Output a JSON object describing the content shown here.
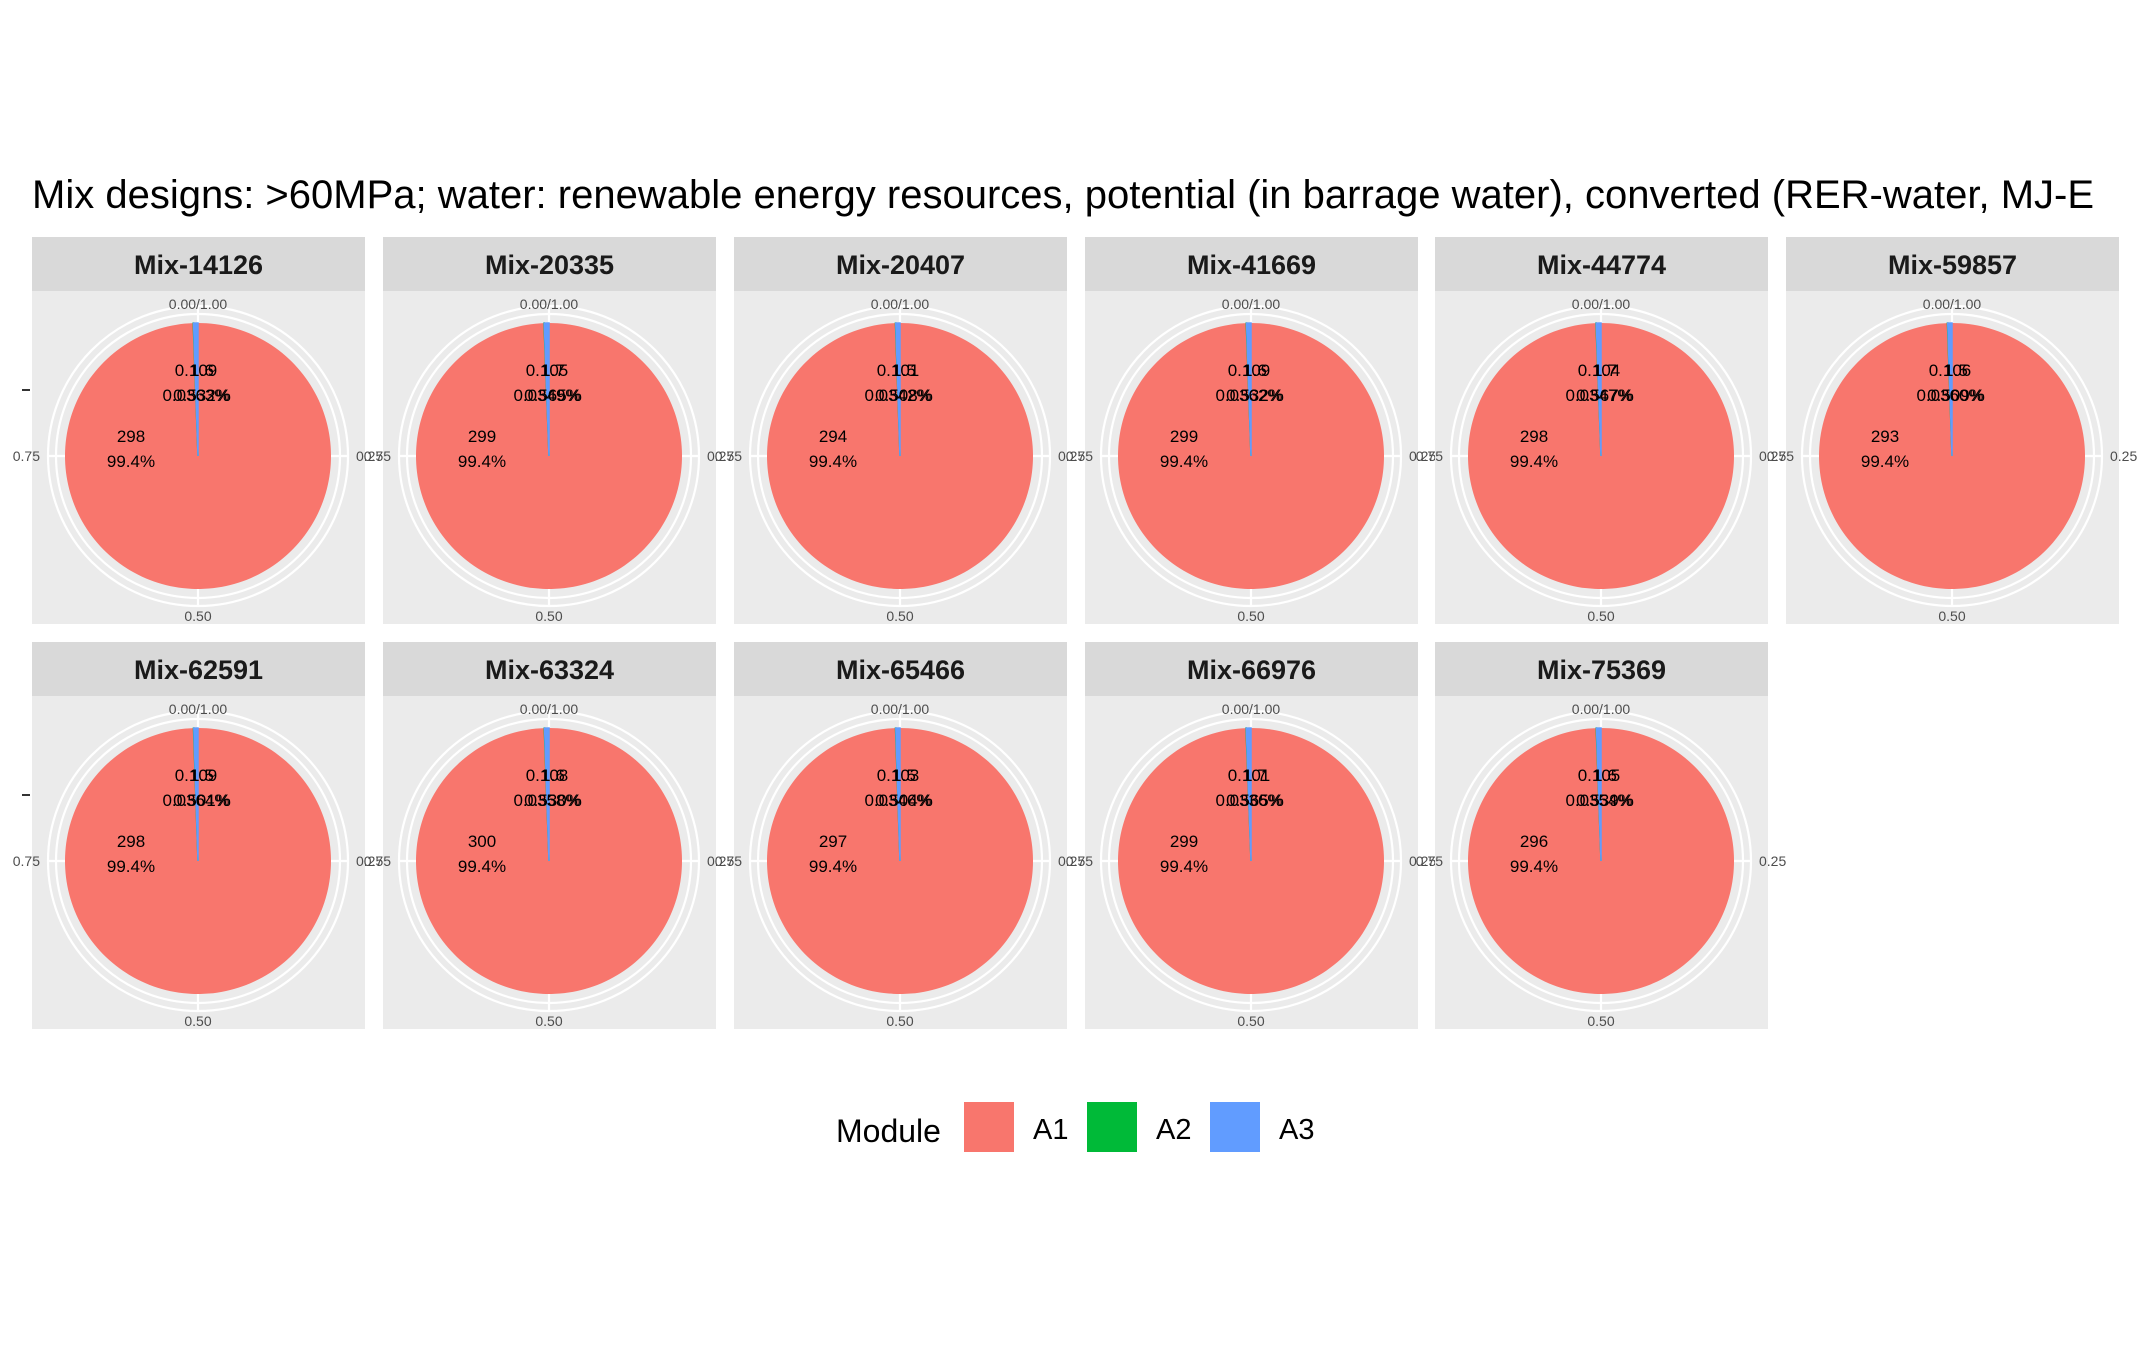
{
  "chart_data": {
    "type": "pie",
    "title": "Mix designs: >60MPa; water: renewable energy resources, potential (in barrage water), converted (RER-water, MJ-E",
    "angle_ticks": [
      "0.00/1.00",
      "0.25",
      "0.50",
      "0.75"
    ],
    "legend": {
      "title": "Module",
      "position": "bottom",
      "entries": [
        "A1",
        "A2",
        "A3"
      ]
    },
    "colors": {
      "A1": "#F8766D",
      "A2": "#00BA38",
      "A3": "#619CFF"
    },
    "facets": [
      {
        "name": "Mix-14126",
        "values": [
          298,
          0.109,
          1.6
        ],
        "labels": {
          "A1": [
            "298",
            "99.4%"
          ],
          "A2": [
            "0.109",
            "0.0363%"
          ],
          "A3": [
            "1.6",
            "0.532%"
          ]
        }
      },
      {
        "name": "Mix-20335",
        "values": [
          299,
          0.105,
          1.7
        ],
        "labels": {
          "A1": [
            "299",
            "99.4%"
          ],
          "A2": [
            "0.105",
            "0.0349%"
          ],
          "A3": [
            "1.7",
            "0.565%"
          ]
        }
      },
      {
        "name": "Mix-20407",
        "values": [
          294,
          0.101,
          1.5
        ],
        "labels": {
          "A1": [
            "294",
            "99.4%"
          ],
          "A2": [
            "0.101",
            "0.0342%"
          ],
          "A3": [
            "1.5",
            "0.508%"
          ]
        }
      },
      {
        "name": "Mix-41669",
        "values": [
          299,
          0.109,
          1.6
        ],
        "labels": {
          "A1": [
            "299",
            "99.4%"
          ],
          "A2": [
            "0.109",
            "0.0362%"
          ],
          "A3": [
            "1.6",
            "0.532%"
          ]
        }
      },
      {
        "name": "Mix-44774",
        "values": [
          298,
          0.104,
          1.7
        ],
        "labels": {
          "A1": [
            "298",
            "99.4%"
          ],
          "A2": [
            "0.104",
            "0.0347%"
          ],
          "A3": [
            "1.7",
            "0.567%"
          ]
        }
      },
      {
        "name": "Mix-59857",
        "values": [
          293,
          0.106,
          1.5
        ],
        "labels": {
          "A1": [
            "293",
            "99.4%"
          ],
          "A2": [
            "0.106",
            "0.0360%"
          ],
          "A3": [
            "1.5",
            "0.509%"
          ]
        }
      },
      {
        "name": "Mix-62591",
        "values": [
          298,
          0.109,
          1.5
        ],
        "labels": {
          "A1": [
            "298",
            "99.4%"
          ],
          "A2": [
            "0.109",
            "0.0364%"
          ],
          "A3": [
            "1.5",
            "0.501%"
          ]
        }
      },
      {
        "name": "Mix-63324",
        "values": [
          300,
          0.108,
          1.6
        ],
        "labels": {
          "A1": [
            "300",
            "99.4%"
          ],
          "A2": [
            "0.108",
            "0.0358%"
          ],
          "A3": [
            "1.6",
            "0.530%"
          ]
        }
      },
      {
        "name": "Mix-65466",
        "values": [
          297,
          0.103,
          1.5
        ],
        "labels": {
          "A1": [
            "297",
            "99.4%"
          ],
          "A2": [
            "0.103",
            "0.0346%"
          ],
          "A3": [
            "1.5",
            "0.504%"
          ]
        }
      },
      {
        "name": "Mix-66976",
        "values": [
          299,
          0.101,
          1.7
        ],
        "labels": {
          "A1": [
            "299",
            "99.4%"
          ],
          "A2": [
            "0.101",
            "0.0336%"
          ],
          "A3": [
            "1.7",
            "0.565%"
          ]
        }
      },
      {
        "name": "Mix-75369",
        "values": [
          296,
          0.105,
          1.6
        ],
        "labels": {
          "A1": [
            "296",
            "99.4%"
          ],
          "A2": [
            "0.105",
            "0.0354%"
          ],
          "A3": [
            "1.6",
            "0.539%"
          ]
        }
      }
    ]
  }
}
